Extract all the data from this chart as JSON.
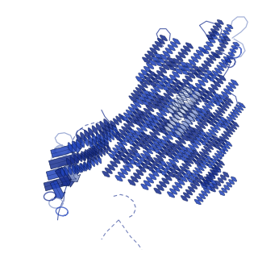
{
  "background_color": "#ffffff",
  "fig_width": 3.2,
  "fig_height": 3.2,
  "dpi": 100,
  "dark_blue": "#1a3090",
  "med_blue": "#2244bb",
  "light_blue": "#4466cc",
  "pale_blue": "#8899cc",
  "very_pale": "#c0cce8",
  "white_hl": "#dde6f5"
}
